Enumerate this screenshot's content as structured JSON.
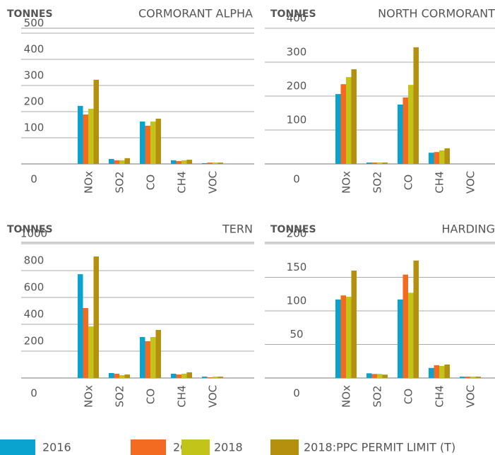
{
  "chart_data": [
    {
      "type": "bar",
      "title": "CORMORANT ALPHA",
      "y_label": "TONNES",
      "categories": [
        "NOx",
        "SO2",
        "CO",
        "CH4",
        "VOC"
      ],
      "series": [
        {
          "name": "2016",
          "color": "#0aa2cf",
          "values": [
            222,
            19,
            162,
            14,
            3
          ]
        },
        {
          "name": "2017",
          "color": "#f26b21",
          "values": [
            189,
            14,
            146,
            11,
            5
          ]
        },
        {
          "name": "2018",
          "color": "#c3c41a",
          "values": [
            211,
            14,
            162,
            14,
            5
          ]
        },
        {
          "name": "2018:PPC PERMIT LIMIT (T)",
          "color": "#b58f0e",
          "values": [
            322,
            22,
            173,
            16,
            5
          ]
        }
      ],
      "ylim": [
        0,
        500
      ],
      "yticks": [
        0,
        100,
        200,
        300,
        400,
        500
      ],
      "grid": true
    },
    {
      "type": "bar",
      "title": "NORTH CORMORANT",
      "y_label": "TONNES",
      "categories": [
        "NOx",
        "SO2",
        "CO",
        "CH4",
        "VOC"
      ],
      "series": [
        {
          "name": "2016",
          "color": "#0aa2cf",
          "values": [
            206,
            4,
            175,
            33,
            0
          ]
        },
        {
          "name": "2017",
          "color": "#f26b21",
          "values": [
            235,
            4,
            196,
            35,
            0
          ]
        },
        {
          "name": "2018",
          "color": "#c3c41a",
          "values": [
            256,
            4,
            233,
            40,
            0
          ]
        },
        {
          "name": "2018:PPC PERMIT LIMIT (T)",
          "color": "#b58f0e",
          "values": [
            279,
            4,
            344,
            46,
            0
          ]
        }
      ],
      "ylim": [
        0,
        400
      ],
      "yticks": [
        0,
        100,
        200,
        300,
        400
      ],
      "grid": true
    },
    {
      "type": "bar",
      "title": "TERN",
      "y_label": "TONNES",
      "categories": [
        "NOx",
        "SO2",
        "CO",
        "CH4",
        "VOC"
      ],
      "series": [
        {
          "name": "2016",
          "color": "#0aa2cf",
          "values": [
            773,
            37,
            305,
            32,
            10
          ]
        },
        {
          "name": "2017",
          "color": "#f26b21",
          "values": [
            521,
            32,
            274,
            26,
            5
          ]
        },
        {
          "name": "2018",
          "color": "#c3c41a",
          "values": [
            384,
            21,
            305,
            32,
            10
          ]
        },
        {
          "name": "2018:PPC PERMIT LIMIT (T)",
          "color": "#b58f0e",
          "values": [
            905,
            26,
            358,
            42,
            10
          ]
        }
      ],
      "ylim": [
        0,
        1000
      ],
      "yticks": [
        0,
        200,
        400,
        600,
        800,
        1000
      ],
      "grid": true
    },
    {
      "type": "bar",
      "title": "HARDING",
      "y_label": "TONNES",
      "categories": [
        "NOx",
        "SO2",
        "CO",
        "CH4",
        "VOC"
      ],
      "series": [
        {
          "name": "2016",
          "color": "#0aa2cf",
          "values": [
            117,
            7,
            117,
            15,
            2
          ]
        },
        {
          "name": "2017",
          "color": "#f26b21",
          "values": [
            123,
            6,
            154,
            19,
            2
          ]
        },
        {
          "name": "2018",
          "color": "#c3c41a",
          "values": [
            121,
            6,
            127,
            18,
            2
          ]
        },
        {
          "name": "2018:PPC PERMIT LIMIT (T)",
          "color": "#b58f0e",
          "values": [
            160,
            5,
            175,
            20,
            2
          ]
        }
      ],
      "ylim": [
        0,
        200
      ],
      "yticks": [
        0,
        50,
        100,
        150,
        200
      ],
      "grid": true
    }
  ]
}
